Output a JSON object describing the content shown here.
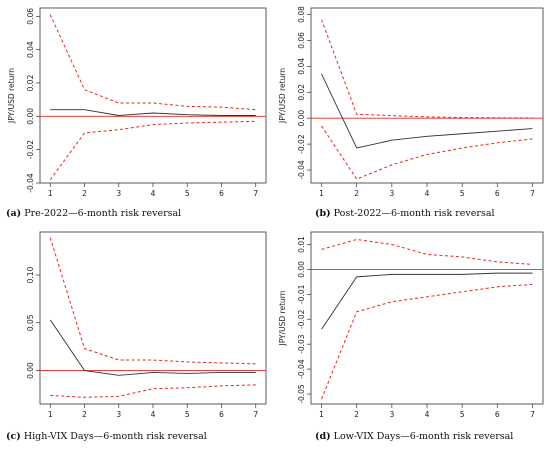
{
  "colors": {
    "irf": "#333333",
    "band": "#e8261c",
    "zero": "#e8261c",
    "frame": "#333333"
  },
  "chart_data": [
    {
      "type": "line",
      "panel_label": "(a)",
      "caption": "Pre-2022—6-month risk reversal",
      "xlabel": "",
      "ylabel": "JPY/USD return",
      "x": [
        1,
        2,
        3,
        4,
        5,
        6,
        7
      ],
      "xlim": [
        0.7,
        7.3
      ],
      "ylim": [
        -0.04,
        0.065
      ],
      "yticks": [
        -0.04,
        -0.02,
        0.0,
        0.02,
        0.04,
        0.06
      ],
      "ytick_labels": [
        "-0.04",
        "-0.02",
        "0.00",
        "0.02",
        "0.04",
        "0.06"
      ],
      "grid": false,
      "zero_line": true,
      "series": [
        {
          "values": [
            0.004,
            0.004,
            0.0005,
            0.002,
            0.001,
            0.0005,
            0.0005
          ]
        },
        {
          "values": [
            0.061,
            0.016,
            0.008,
            0.008,
            0.006,
            0.0055,
            0.004
          ]
        },
        {
          "values": [
            -0.038,
            -0.01,
            -0.008,
            -0.005,
            -0.004,
            -0.0035,
            -0.003
          ]
        }
      ]
    },
    {
      "type": "line",
      "panel_label": "(b)",
      "caption": "Post-2022—6-month risk reversal",
      "xlabel": "",
      "ylabel": "JPY/USD return",
      "x": [
        1,
        2,
        3,
        4,
        5,
        6,
        7
      ],
      "xlim": [
        0.7,
        7.3
      ],
      "ylim": [
        -0.05,
        0.085
      ],
      "yticks": [
        -0.04,
        -0.02,
        0.0,
        0.02,
        0.04,
        0.06,
        0.08
      ],
      "ytick_labels": [
        "-0.04",
        "-0.02",
        "0.00",
        "0.02",
        "0.04",
        "0.06",
        "0.08"
      ],
      "grid": false,
      "zero_line": true,
      "series": [
        {
          "values": [
            0.034,
            -0.023,
            -0.017,
            -0.014,
            -0.012,
            -0.01,
            -0.008
          ]
        },
        {
          "values": [
            0.076,
            0.003,
            0.002,
            0.001,
            0.0005,
            0.0003,
            0.0002
          ]
        },
        {
          "values": [
            -0.006,
            -0.047,
            -0.036,
            -0.028,
            -0.023,
            -0.019,
            -0.016
          ]
        }
      ]
    },
    {
      "type": "line",
      "panel_label": "(c)",
      "caption": "High-VIX Days—6-month risk reversal",
      "xlabel": "",
      "ylabel": "",
      "x": [
        1,
        2,
        3,
        4,
        5,
        6,
        7
      ],
      "xlim": [
        0.7,
        7.3
      ],
      "ylim": [
        -0.035,
        0.145
      ],
      "yticks": [
        0.0,
        0.05,
        0.1
      ],
      "ytick_labels": [
        "0.00",
        "0.05",
        "0.10"
      ],
      "grid": false,
      "zero_line": true,
      "series": [
        {
          "values": [
            0.053,
            0.0,
            -0.005,
            -0.002,
            -0.003,
            -0.002,
            -0.002
          ]
        },
        {
          "values": [
            0.139,
            0.023,
            0.011,
            0.011,
            0.009,
            0.008,
            0.007
          ]
        },
        {
          "values": [
            -0.026,
            -0.028,
            -0.027,
            -0.019,
            -0.018,
            -0.016,
            -0.015
          ]
        }
      ]
    },
    {
      "type": "line",
      "panel_label": "(d)",
      "caption": "Low-VIX Days—6-month risk reversal",
      "xlabel": "",
      "ylabel": "JPY/USD return",
      "x": [
        1,
        2,
        3,
        4,
        5,
        6,
        7
      ],
      "xlim": [
        0.7,
        7.3
      ],
      "ylim": [
        -0.054,
        0.015
      ],
      "yticks": [
        -0.05,
        -0.04,
        -0.03,
        -0.02,
        -0.01,
        0.0,
        0.01
      ],
      "ytick_labels": [
        "-0.05",
        "-0.04",
        "-0.03",
        "-0.02",
        "-0.01",
        "0.00",
        "0.01"
      ],
      "grid": false,
      "zero_line": true,
      "series": [
        {
          "values": [
            -0.024,
            -0.003,
            -0.002,
            -0.002,
            -0.002,
            -0.0015,
            -0.0015
          ]
        },
        {
          "values": [
            0.008,
            0.012,
            0.01,
            0.006,
            0.005,
            0.003,
            0.002
          ]
        },
        {
          "values": [
            -0.052,
            -0.017,
            -0.013,
            -0.011,
            -0.009,
            -0.007,
            -0.006
          ]
        }
      ]
    }
  ]
}
